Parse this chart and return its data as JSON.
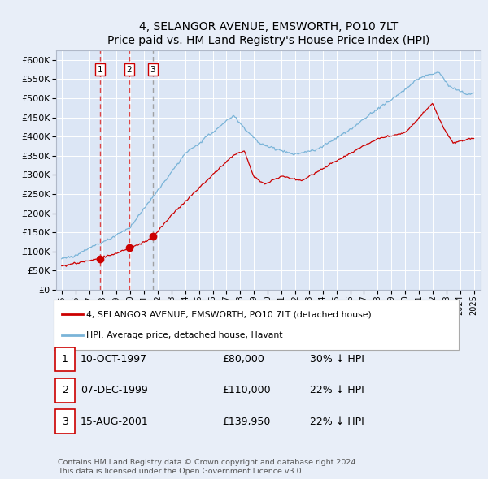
{
  "title": "4, SELANGOR AVENUE, EMSWORTH, PO10 7LT",
  "subtitle": "Price paid vs. HM Land Registry's House Price Index (HPI)",
  "legend1": "4, SELANGOR AVENUE, EMSWORTH, PO10 7LT (detached house)",
  "legend2": "HPI: Average price, detached house, Havant",
  "footer": "Contains HM Land Registry data © Crown copyright and database right 2024.\nThis data is licensed under the Open Government Licence v3.0.",
  "transactions": [
    {
      "num": 1,
      "date": "10-OCT-1997",
      "price": 80000,
      "hpi_text": "30% ↓ HPI",
      "x_year": 1997.78,
      "vline_color": "#dd3333"
    },
    {
      "num": 2,
      "date": "07-DEC-1999",
      "price": 110000,
      "hpi_text": "22% ↓ HPI",
      "x_year": 1999.93,
      "vline_color": "#dd3333"
    },
    {
      "num": 3,
      "date": "15-AUG-2001",
      "price": 139950,
      "hpi_text": "22% ↓ HPI",
      "x_year": 2001.62,
      "vline_color": "#999999"
    }
  ],
  "hpi_color": "#7ab4d8",
  "price_color": "#cc0000",
  "bg_color": "#e8eef8",
  "plot_bg": "#dce6f5",
  "grid_color": "#ffffff",
  "ylim_max": 625000,
  "xlim_start": 1994.6,
  "xlim_end": 2025.5,
  "yticks": [
    0,
    50000,
    100000,
    150000,
    200000,
    250000,
    300000,
    350000,
    400000,
    450000,
    500000,
    550000,
    600000
  ],
  "xticks": [
    1995,
    1996,
    1997,
    1998,
    1999,
    2000,
    2001,
    2002,
    2003,
    2004,
    2005,
    2006,
    2007,
    2008,
    2009,
    2010,
    2011,
    2012,
    2013,
    2014,
    2015,
    2016,
    2017,
    2018,
    2019,
    2020,
    2021,
    2022,
    2023,
    2024,
    2025
  ]
}
